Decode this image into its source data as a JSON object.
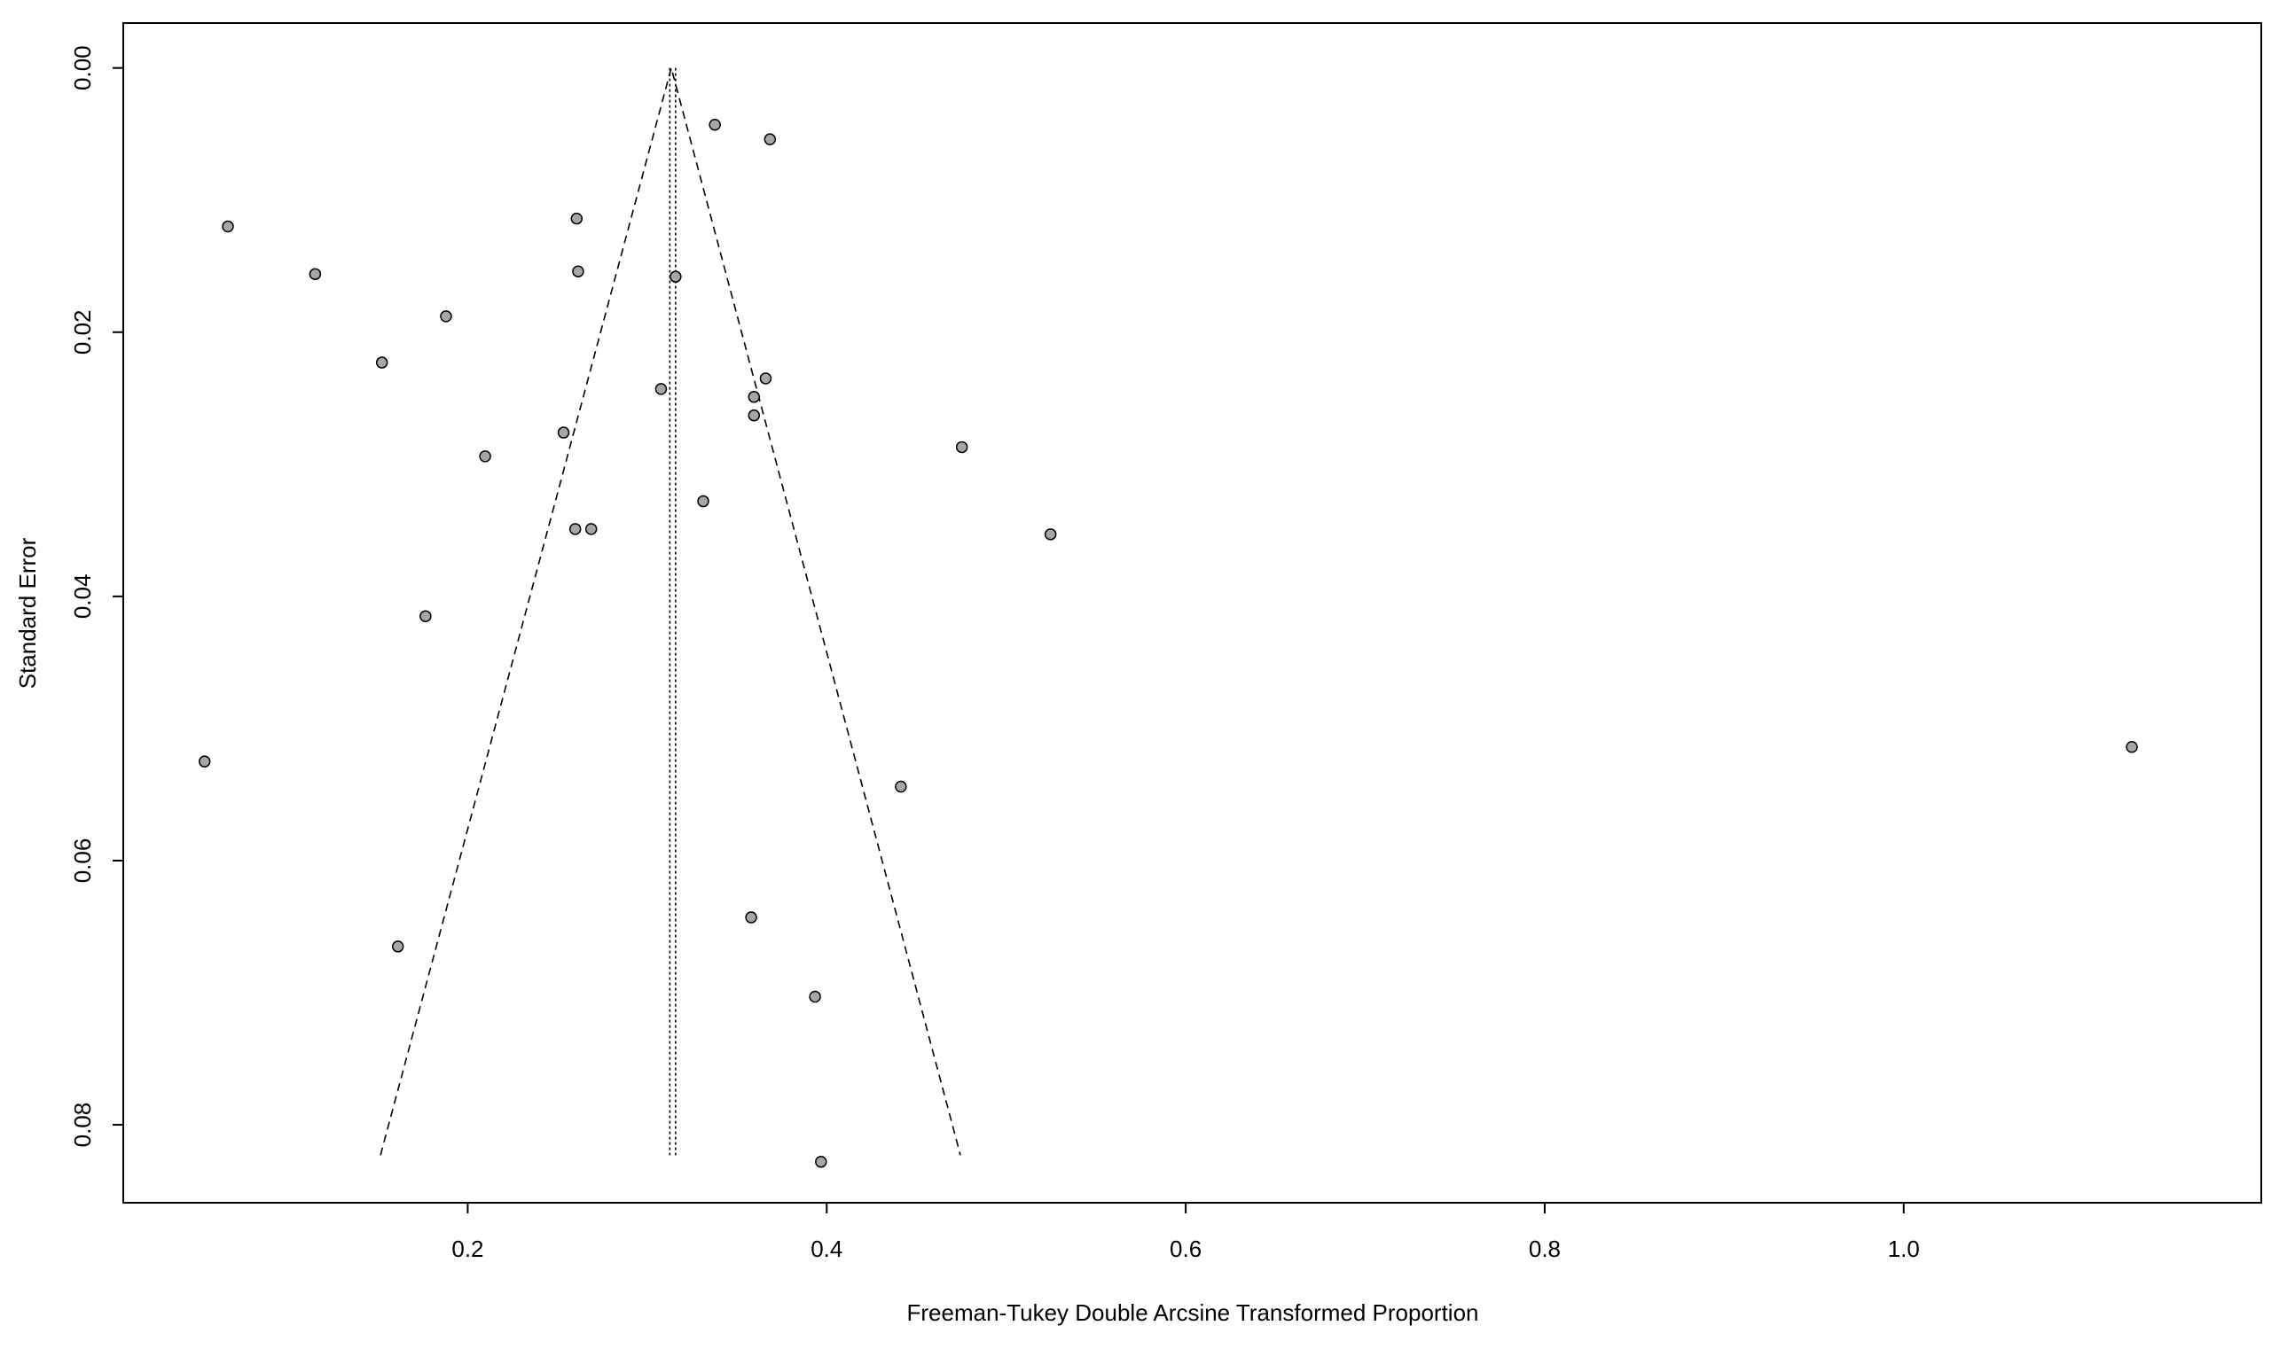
{
  "chart_data": {
    "type": "funnel",
    "x_label": "Freeman-Tukey Double Arcsine Transformed Proportion",
    "y_label": "Standard Error",
    "x": [
      0.3377,
      0.3684,
      0.0664,
      0.2607,
      0.115,
      0.2615,
      0.3158,
      0.1879,
      0.1522,
      0.3077,
      0.366,
      0.3595,
      0.3595,
      0.2534,
      0.4753,
      0.2097,
      0.3312,
      0.2599,
      0.2688,
      0.5247,
      0.1765,
      0.0534,
      1.1271,
      0.4413,
      0.3579,
      0.1611,
      0.3935,
      0.3968
    ],
    "values": [
      0.0043,
      0.0054,
      0.012,
      0.0114,
      0.0156,
      0.0154,
      0.0158,
      0.0188,
      0.0223,
      0.0243,
      0.0235,
      0.0249,
      0.0263,
      0.0276,
      0.0287,
      0.0294,
      0.0328,
      0.0349,
      0.0349,
      0.0353,
      0.0415,
      0.0525,
      0.0514,
      0.0544,
      0.0643,
      0.0665,
      0.0703,
      0.0828
    ],
    "color": "#a6a6a6",
    "funnel": {
      "apex": [
        0.3134,
        0
      ],
      "left": [
        0.1514,
        0.0823
      ],
      "right": [
        0.4745,
        0.0823
      ]
    },
    "reference_lines": [
      0.3126,
      0.3158
    ],
    "xlim": [
      0.0081,
      1.1992
    ],
    "ylim": [
      -0.0034,
      0.0859
    ],
    "y_inverted": true,
    "xticks": [
      0.2,
      0.4,
      0.6,
      0.8,
      {
        "value": 1,
        "label": "1.0"
      }
    ],
    "yticks": [
      {
        "value": 0,
        "label": "0.00"
      },
      {
        "value": 0.02,
        "label": "0.02"
      },
      {
        "value": 0.04,
        "label": "0.04"
      },
      {
        "value": 0.06,
        "label": "0.06"
      },
      {
        "value": 0.08,
        "label": "0.08"
      }
    ]
  }
}
